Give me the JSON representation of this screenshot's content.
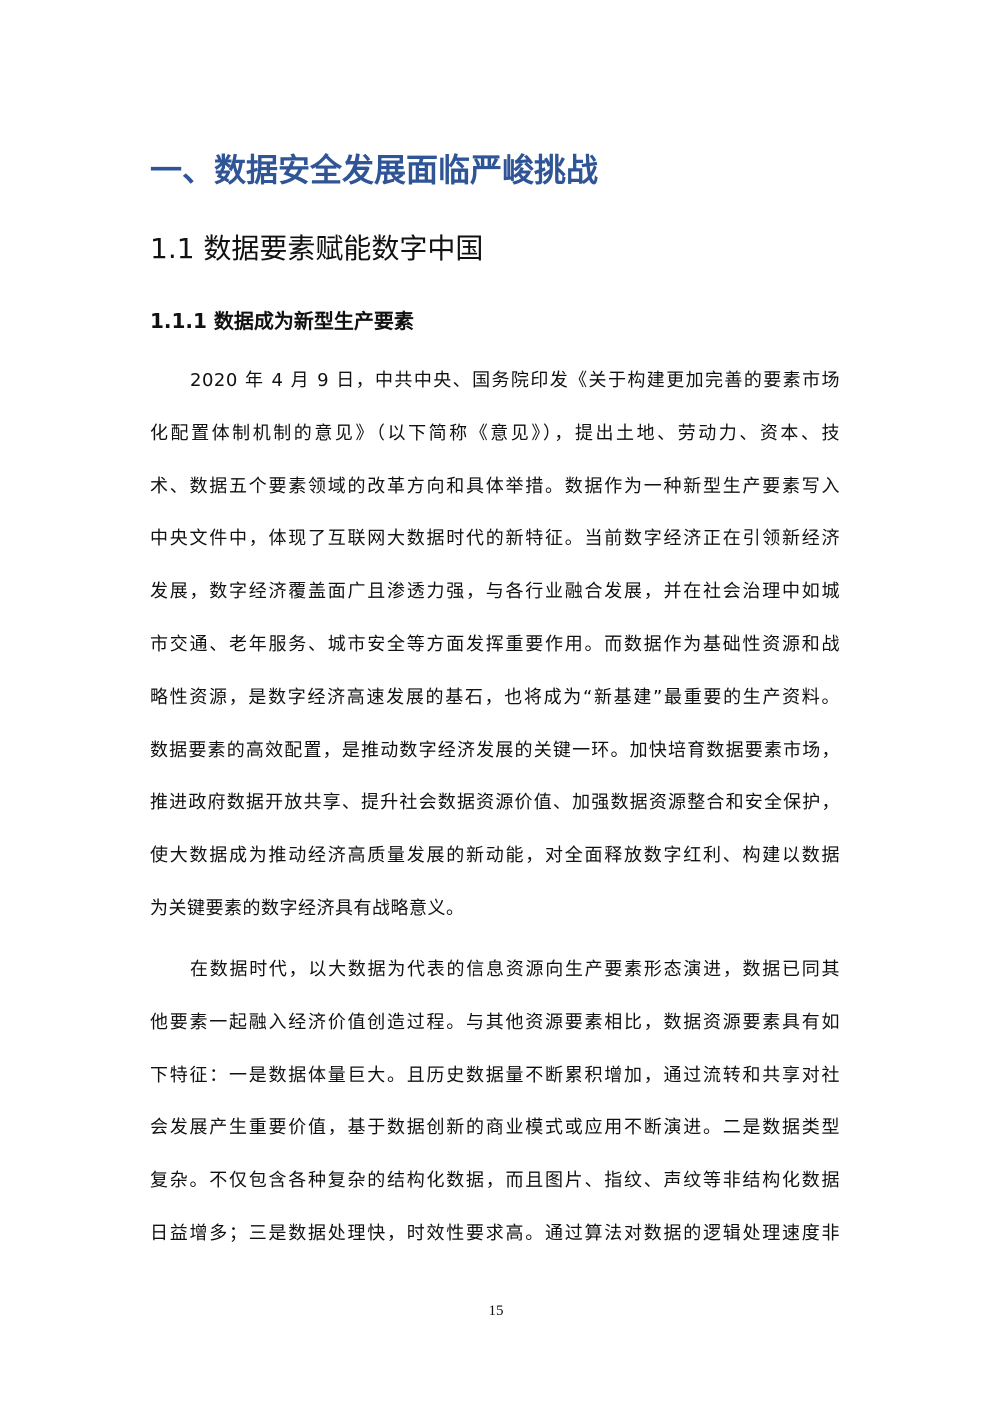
{
  "heading1": "一、数据安全发展面临严峻挑战",
  "heading2": "1.1 数据要素赋能数字中国",
  "heading3": "1.1.1 数据成为新型生产要素",
  "paragraphs": [
    {
      "lines": [
        "2020 年 4 月 9 日，中共中央、国务院印发《关于构建更加完善的要素市场",
        "化配置体制机制的意见》（以下简称《意见》），提出土地、劳动力、资本、技",
        "术、数据五个要素领域的改革方向和具体举措。数据作为一种新型生产要素写入",
        "中央文件中，体现了互联网大数据时代的新特征。当前数字经济正在引领新经济",
        "发展，数字经济覆盖面广且渗透力强，与各行业融合发展，并在社会治理中如城",
        "市交通、老年服务、城市安全等方面发挥重要作用。而数据作为基础性资源和战",
        "略性资源，是数字经济高速发展的基石，也将成为“新基建”最重要的生产资料。",
        "数据要素的高效配置，是推动数字经济发展的关键一环。加快培育数据要素市场，",
        "推进政府数据开放共享、提升社会数据资源价值、加强数据资源整合和安全保护，",
        "使大数据成为推动经济高质量发展的新动能，对全面释放数字红利、构建以数据",
        "为关键要素的数字经济具有战略意义。"
      ]
    },
    {
      "lines": [
        "在数据时代，以大数据为代表的信息资源向生产要素形态演进，数据已同其",
        "他要素一起融入经济价值创造过程。与其他资源要素相比，数据资源要素具有如",
        "下特征：一是数据体量巨大。且历史数据量不断累积增加，通过流转和共享对社",
        "会发展产生重要价值，基于数据创新的商业模式或应用不断演进。二是数据类型",
        "复杂。不仅包含各种复杂的结构化数据，而且图片、指纹、声纹等非结构化数据",
        "日益增多；三是数据处理快，时效性要求高。通过算法对数据的逻辑处理速度非"
      ]
    }
  ],
  "page_number": "15"
}
